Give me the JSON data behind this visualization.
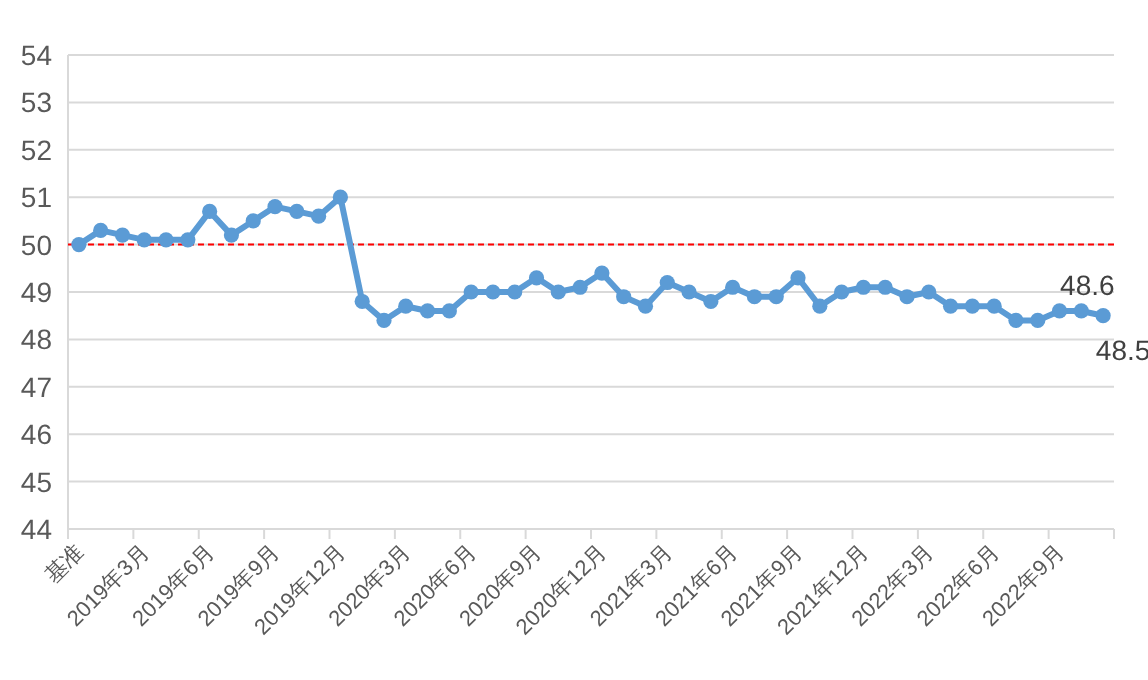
{
  "chart_data": {
    "type": "line",
    "categories": [
      "基准",
      null,
      null,
      "2019年3月",
      null,
      null,
      "2019年6月",
      null,
      null,
      "2019年9月",
      null,
      null,
      "2019年12月",
      null,
      null,
      "2020年3月",
      null,
      null,
      "2020年6月",
      null,
      null,
      "2020年9月",
      null,
      null,
      "2020年12月",
      null,
      null,
      "2021年3月",
      null,
      null,
      "2021年6月",
      null,
      null,
      "2021年9月",
      null,
      null,
      "2021年12月",
      null,
      null,
      "2022年3月",
      null,
      null,
      "2022年6月",
      null,
      null,
      "2022年9月",
      null,
      null
    ],
    "series": [
      {
        "color": "#5b9bd5",
        "values": [
          50.0,
          50.3,
          50.2,
          50.1,
          50.1,
          50.1,
          50.7,
          50.2,
          50.5,
          50.8,
          50.7,
          50.6,
          51.0,
          48.8,
          48.4,
          48.7,
          48.6,
          48.6,
          49.0,
          49.0,
          49.0,
          49.3,
          49.0,
          49.1,
          49.4,
          48.9,
          48.7,
          49.2,
          49.0,
          48.8,
          49.1,
          48.9,
          48.9,
          49.3,
          48.7,
          49.0,
          49.1,
          49.1,
          48.9,
          49.0,
          48.7,
          48.7,
          48.7,
          48.4,
          48.4,
          48.6,
          48.6,
          48.5
        ],
        "value_labels": [
          null,
          null,
          null,
          null,
          null,
          null,
          null,
          null,
          null,
          null,
          null,
          null,
          null,
          null,
          null,
          null,
          null,
          null,
          null,
          null,
          null,
          null,
          null,
          null,
          null,
          null,
          null,
          null,
          null,
          null,
          null,
          null,
          null,
          null,
          null,
          null,
          null,
          null,
          null,
          null,
          null,
          null,
          null,
          null,
          null,
          null,
          "48.6",
          "48.5"
        ]
      }
    ],
    "ylim": [
      44,
      54
    ],
    "yticks": [
      44,
      45,
      46,
      47,
      48,
      49,
      50,
      51,
      52,
      53,
      54
    ],
    "grid": "y",
    "marker": "circle",
    "line_style": "solid",
    "ref_lines": [
      {
        "axis": "y",
        "value": 50,
        "color": "#ff0000",
        "line_style": "dashed"
      }
    ]
  }
}
